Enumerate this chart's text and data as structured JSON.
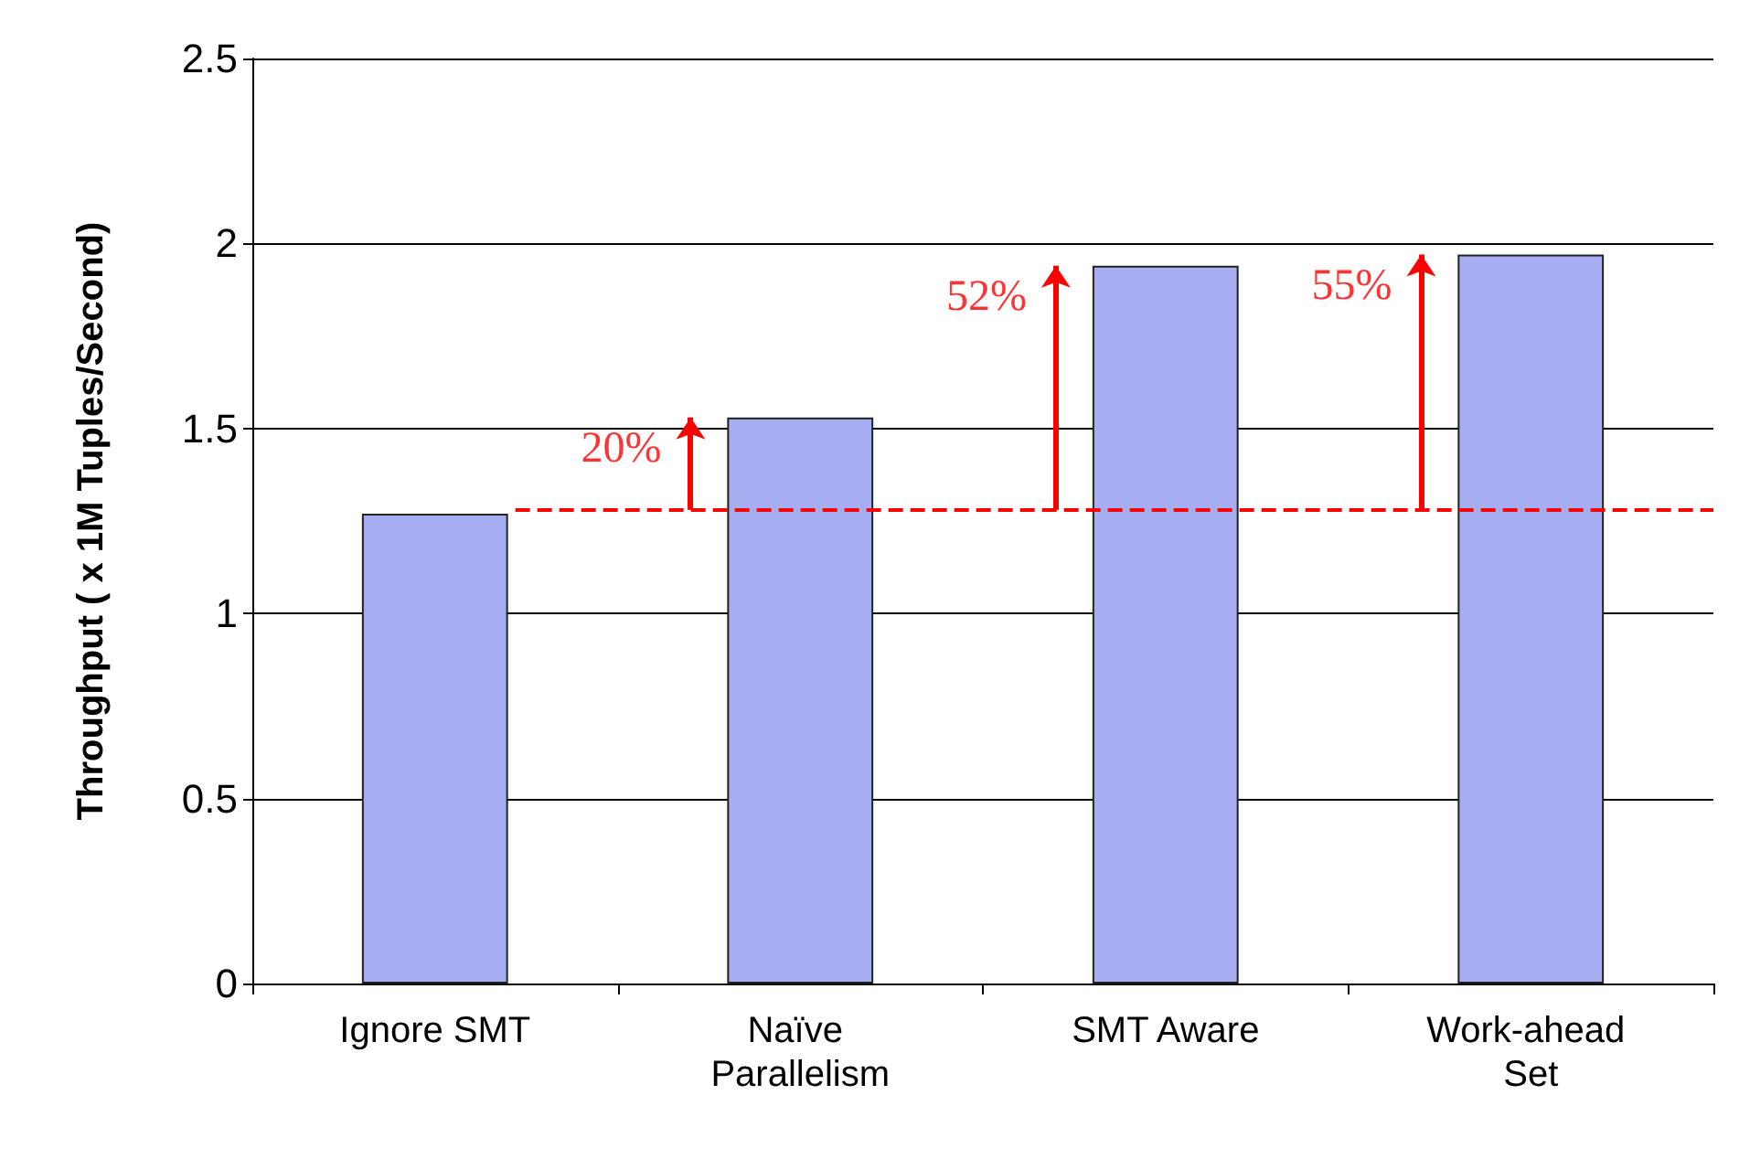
{
  "chart_data": {
    "type": "bar",
    "ylabel": "Throughput ( x 1M Tuples/Second)",
    "categories": [
      "Ignore SMT",
      "Naïve Parallelism",
      "SMT Aware",
      "Work-ahead Set"
    ],
    "values": [
      1.27,
      1.53,
      1.94,
      1.97
    ],
    "color": "#a6adf0",
    "ylim": [
      0,
      2.5
    ],
    "yticks": [
      0,
      0.5,
      1,
      1.5,
      2,
      2.5
    ],
    "grid": "y",
    "ref_lines": [
      {
        "axis": "y",
        "value": 1.28,
        "color": "#ff0000",
        "line_style": "dashed"
      }
    ],
    "annotations": [
      "20%",
      "52%",
      "55%"
    ]
  }
}
